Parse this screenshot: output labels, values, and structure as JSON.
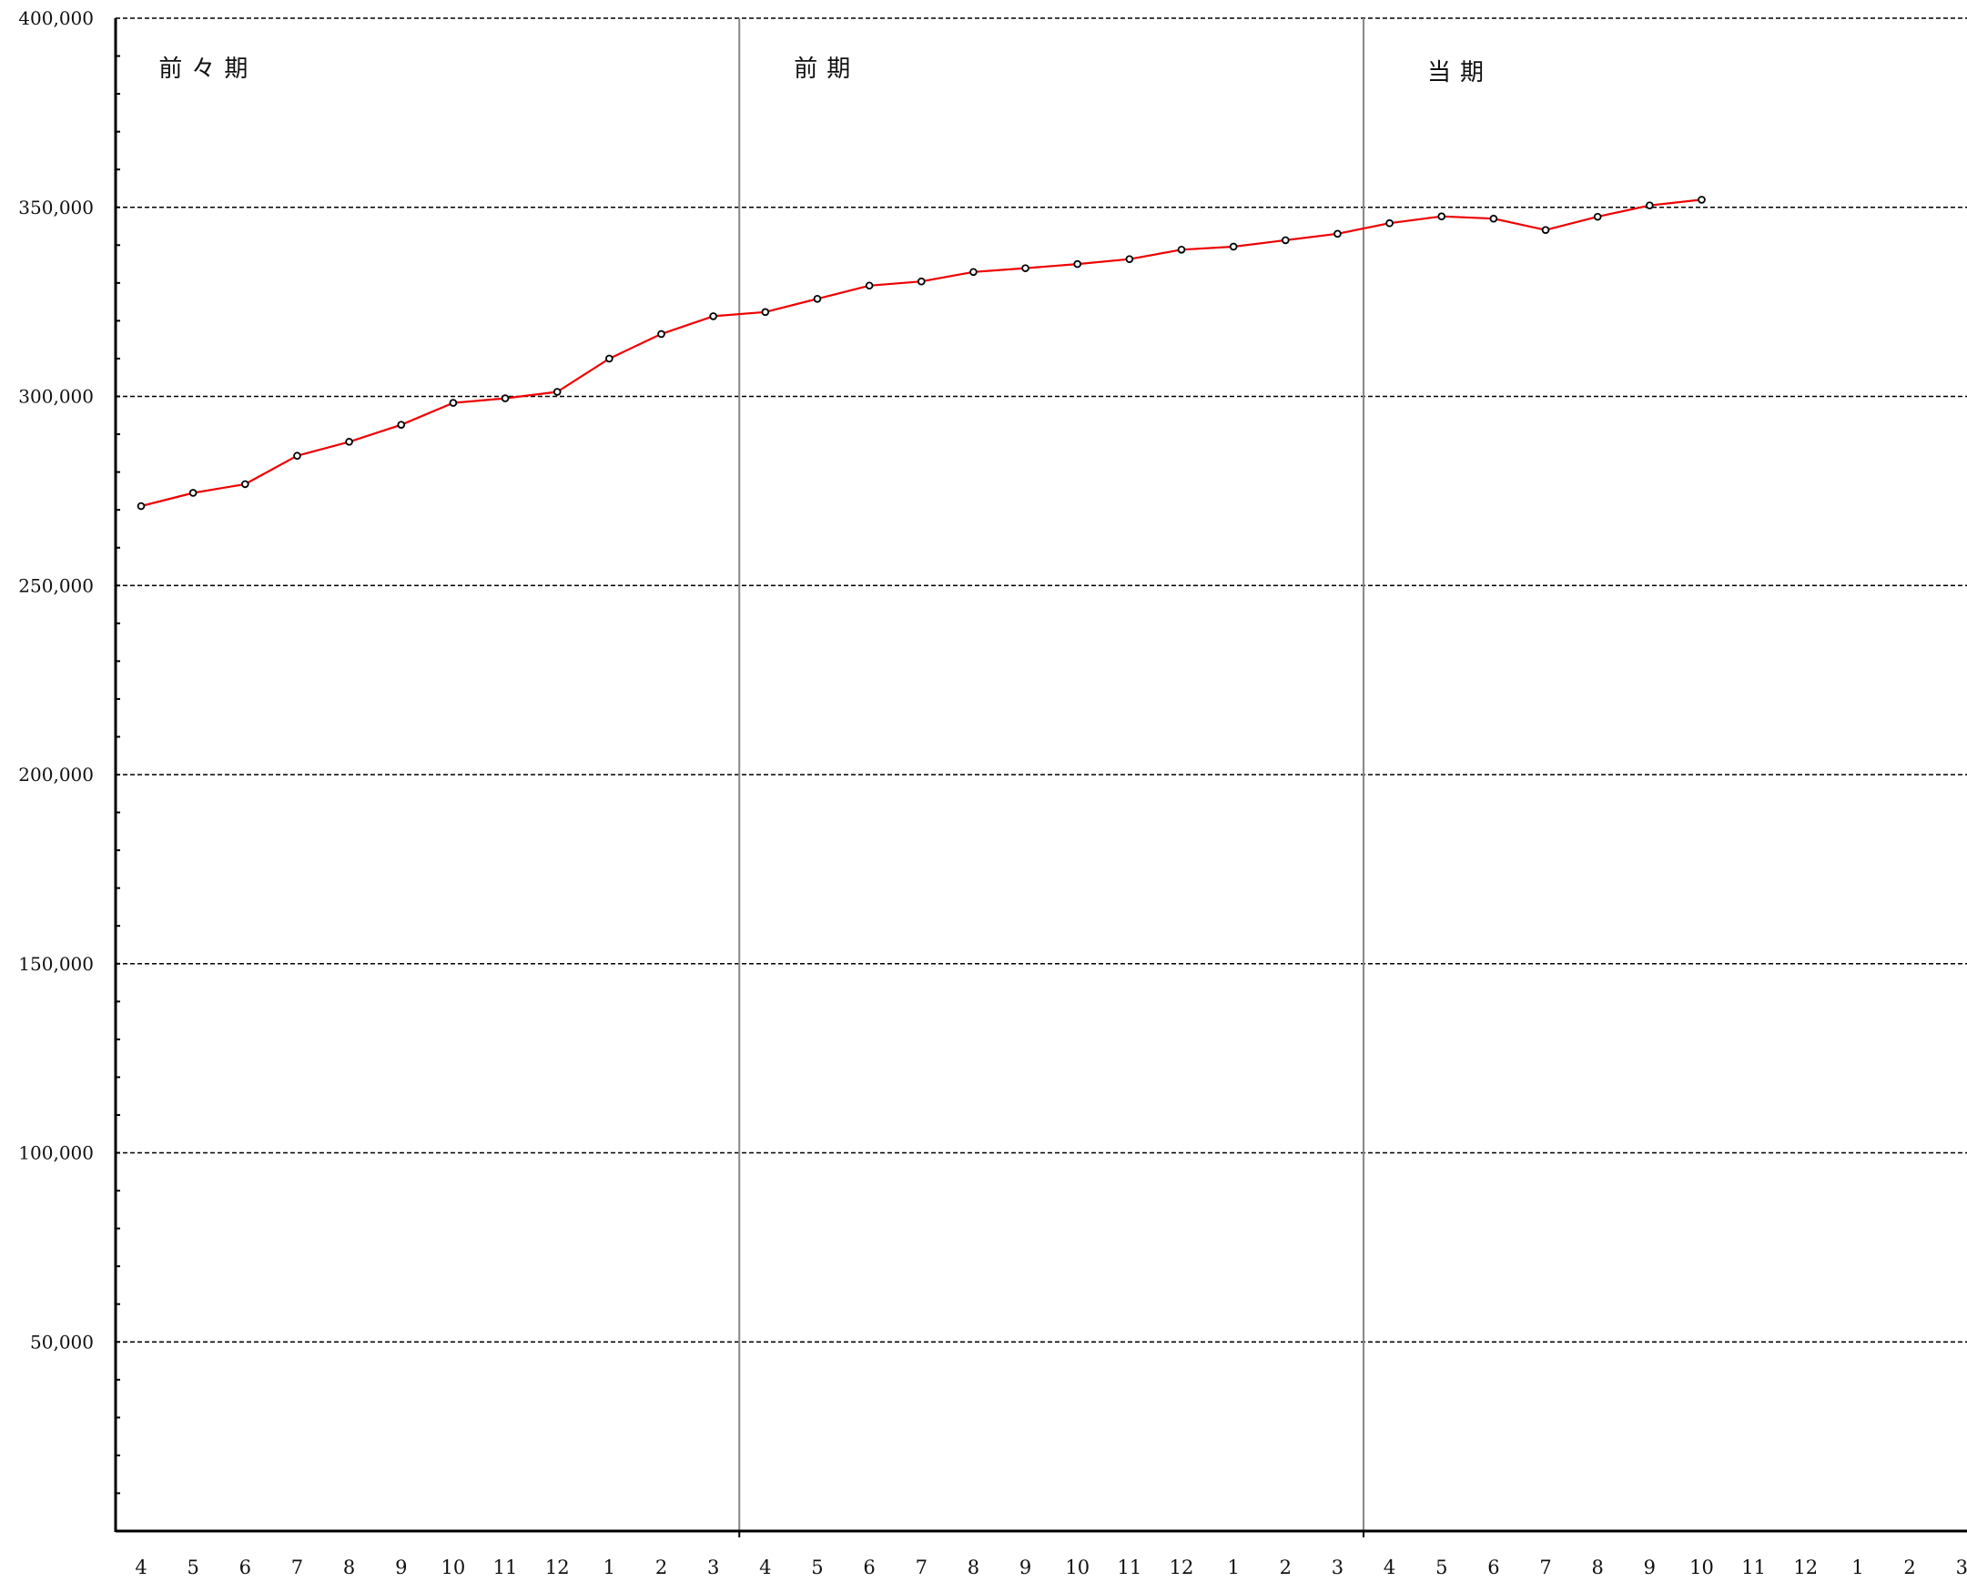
{
  "chart_data": {
    "type": "line",
    "title": "",
    "xlabel": "",
    "ylabel": "",
    "ylim": [
      0,
      400000
    ],
    "y_ticks": [
      "400,000",
      "350,000",
      "300,000",
      "250,000",
      "200,000",
      "150,000",
      "100,000",
      "50,000"
    ],
    "y_tick_values": [
      400000,
      350000,
      300000,
      250000,
      200000,
      150000,
      100000,
      50000
    ],
    "grid": "horizontal dashed",
    "periods": [
      {
        "label": "前々期",
        "months": [
          "4",
          "5",
          "6",
          "7",
          "8",
          "9",
          "10",
          "11",
          "12",
          "1",
          "2",
          "3"
        ]
      },
      {
        "label": "前期",
        "months": [
          "4",
          "5",
          "6",
          "7",
          "8",
          "9",
          "10",
          "11",
          "12",
          "1",
          "2",
          "3"
        ]
      },
      {
        "label": "当期",
        "months": [
          "4",
          "5",
          "6",
          "7",
          "8",
          "9",
          "10",
          "11",
          "12",
          "1",
          "2",
          "3"
        ]
      }
    ],
    "series": [
      {
        "color": "#ee0000",
        "values": [
          271000,
          274500,
          276800,
          284300,
          288000,
          292500,
          298300,
          299500,
          301200,
          310000,
          316500,
          321200,
          322300,
          325800,
          329300,
          330400,
          332900,
          333900,
          335000,
          336300,
          338800,
          339600,
          341300,
          343000,
          345800,
          347600,
          347000,
          344000,
          347500,
          350500,
          352000
        ]
      }
    ]
  },
  "colors": {
    "line": "#ee0000",
    "grid": "#000000",
    "divider": "#888888",
    "axis": "#000000"
  }
}
